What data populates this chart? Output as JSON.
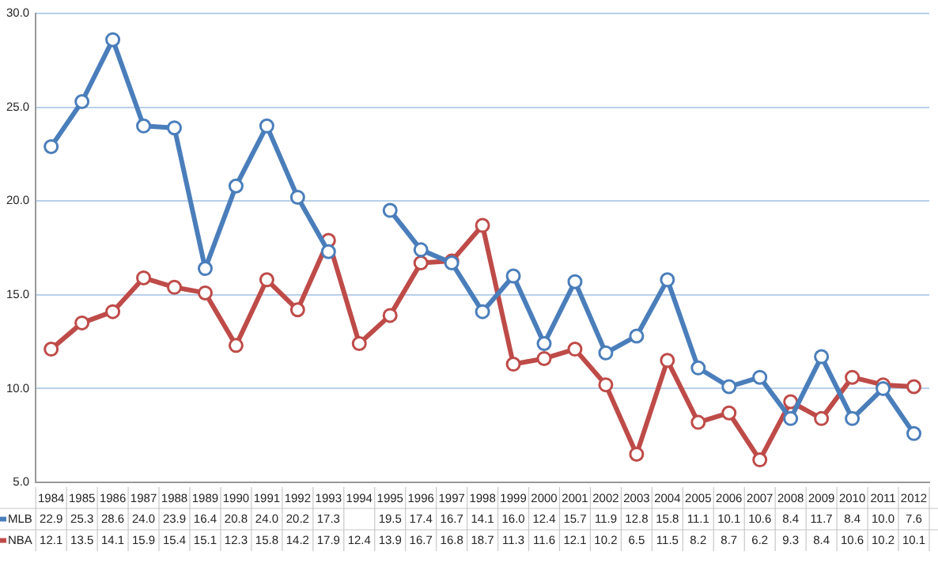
{
  "chart_data": {
    "type": "line",
    "categories": [
      "1984",
      "1985",
      "1986",
      "1987",
      "1988",
      "1989",
      "1990",
      "1991",
      "1992",
      "1993",
      "1994",
      "1995",
      "1996",
      "1997",
      "1998",
      "1999",
      "2000",
      "2001",
      "2002",
      "2003",
      "2004",
      "2005",
      "2006",
      "2007",
      "2008",
      "2009",
      "2010",
      "2011",
      "2012"
    ],
    "series": [
      {
        "name": "MLB",
        "color": "#4a7ebb",
        "values": [
          22.9,
          25.3,
          28.6,
          24.0,
          23.9,
          16.4,
          20.8,
          24.0,
          20.2,
          17.3,
          null,
          19.5,
          17.4,
          16.7,
          14.1,
          16.0,
          12.4,
          15.7,
          11.9,
          12.8,
          15.8,
          11.1,
          10.1,
          10.6,
          8.4,
          11.7,
          8.4,
          10.0,
          7.6
        ],
        "value_labels": [
          "22.9",
          "25.3",
          "28.6",
          "24.0",
          "23.9",
          "16.4",
          "20.8",
          "24.0",
          "20.2",
          "17.3",
          null,
          "19.5",
          "17.4",
          "16.7",
          "14.1",
          "16.0",
          "12.4",
          "15.7",
          "11.9",
          "12.8",
          "15.8",
          "11.1",
          "10.1",
          "10.6",
          "8.4",
          "11.7",
          "8.4",
          "10.0",
          "7.6"
        ]
      },
      {
        "name": "NBA",
        "color": "#be4b48",
        "values": [
          12.1,
          13.5,
          14.1,
          15.9,
          15.4,
          15.1,
          12.3,
          15.8,
          14.2,
          17.9,
          12.4,
          13.9,
          16.7,
          16.8,
          18.7,
          11.3,
          11.6,
          12.1,
          10.2,
          6.5,
          11.5,
          8.2,
          8.7,
          6.2,
          9.3,
          8.4,
          10.6,
          10.2,
          10.1
        ],
        "value_labels": [
          "12.1",
          "13.5",
          "14.1",
          "15.9",
          "15.4",
          "15.1",
          "12.3",
          "15.8",
          "14.2",
          "17.9",
          "12.4",
          "13.9",
          "16.7",
          "16.8",
          "18.7",
          "11.3",
          "11.6",
          "12.1",
          "10.2",
          "6.5",
          "11.5",
          "8.2",
          "8.7",
          "6.2",
          "9.3",
          "8.4",
          "10.6",
          "10.2",
          "10.1"
        ]
      }
    ],
    "ylim": [
      5,
      30
    ],
    "yticks": [
      {
        "value": 5,
        "label": "5.0"
      },
      {
        "value": 10,
        "label": "10.0"
      },
      {
        "value": 15,
        "label": "15.0"
      },
      {
        "value": 20,
        "label": "20.0"
      },
      {
        "value": 25,
        "label": "25.0"
      },
      {
        "value": 30,
        "label": "30.0"
      }
    ],
    "grid": "y",
    "legend": "bottom left",
    "marker": "circle",
    "line_style": "solid"
  }
}
